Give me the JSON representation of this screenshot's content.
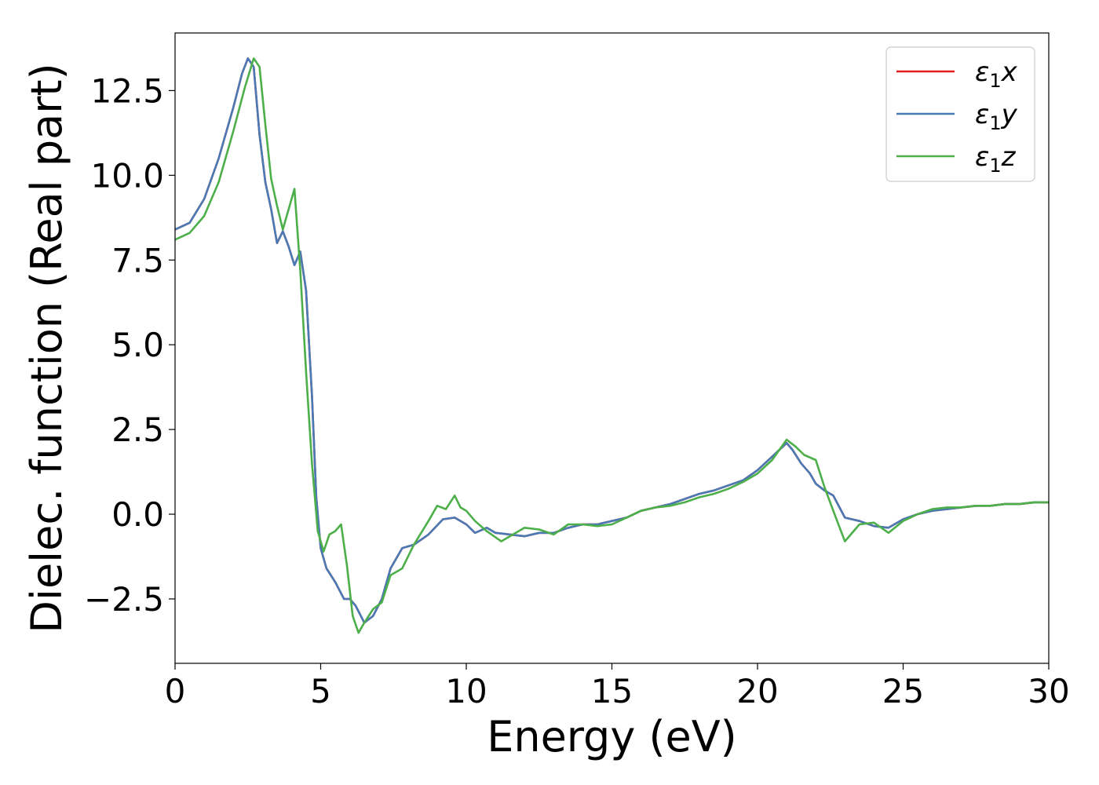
{
  "chart_data": {
    "type": "line",
    "xlabel": "Energy (eV)",
    "ylabel": "Dielec. function (Real part)",
    "xlim": [
      0,
      30
    ],
    "ylim": [
      -4.4,
      14.2
    ],
    "xticks": [
      0,
      5,
      10,
      15,
      20,
      25,
      30
    ],
    "xtick_labels": [
      "0",
      "5",
      "10",
      "15",
      "20",
      "25",
      "30"
    ],
    "yticks": [
      -2.5,
      0.0,
      2.5,
      5.0,
      7.5,
      10.0,
      12.5
    ],
    "ytick_labels": [
      "−2.5",
      "0.0",
      "2.5",
      "5.0",
      "7.5",
      "10.0",
      "12.5"
    ],
    "grid": false,
    "legend_position": "top-right",
    "series": [
      {
        "name": "x",
        "legend_sym": "ε",
        "legend_sub": "1",
        "legend_var": "x",
        "color": "#e41a1c",
        "x": [
          0,
          0.5,
          1,
          1.5,
          2,
          2.3,
          2.5,
          2.7,
          2.9,
          3.1,
          3.3,
          3.5,
          3.7,
          3.9,
          4.1,
          4.3,
          4.5,
          4.7,
          4.85,
          5,
          5.2,
          5.5,
          5.8,
          6,
          6.2,
          6.5,
          6.8,
          7.1,
          7.4,
          7.8,
          8.2,
          8.7,
          9.2,
          9.6,
          10,
          10.3,
          10.7,
          11,
          11.5,
          12,
          12.5,
          13,
          13.5,
          14,
          14.5,
          15,
          15.5,
          16,
          16.5,
          17,
          17.5,
          18,
          18.5,
          19,
          19.5,
          20,
          20.5,
          21,
          21.2,
          21.5,
          21.8,
          22,
          22.3,
          22.6,
          23,
          23.5,
          24,
          24.5,
          25,
          25.5,
          26,
          26.5,
          27,
          27.5,
          28,
          28.5,
          29,
          29.5,
          30
        ],
        "y": [
          8.4,
          8.6,
          9.3,
          10.5,
          12.0,
          13.0,
          13.45,
          13.2,
          11.2,
          9.8,
          9.0,
          8.0,
          8.35,
          7.9,
          7.35,
          7.75,
          6.6,
          3.5,
          0.5,
          -1.0,
          -1.6,
          -2.0,
          -2.5,
          -2.5,
          -2.7,
          -3.2,
          -3.0,
          -2.5,
          -1.6,
          -1.0,
          -0.9,
          -0.6,
          -0.15,
          -0.1,
          -0.3,
          -0.55,
          -0.4,
          -0.55,
          -0.6,
          -0.65,
          -0.55,
          -0.55,
          -0.4,
          -0.3,
          -0.3,
          -0.2,
          -0.1,
          0.1,
          0.2,
          0.3,
          0.45,
          0.6,
          0.7,
          0.85,
          1.0,
          1.3,
          1.7,
          2.1,
          1.9,
          1.5,
          1.2,
          0.9,
          0.7,
          0.55,
          -0.1,
          -0.2,
          -0.35,
          -0.4,
          -0.15,
          0.0,
          0.1,
          0.15,
          0.2,
          0.25,
          0.25,
          0.3,
          0.3,
          0.35,
          0.35
        ]
      },
      {
        "name": "y",
        "legend_sym": "ε",
        "legend_sub": "1",
        "legend_var": "y",
        "color": "#4a7ab5",
        "x": [
          0,
          0.5,
          1,
          1.5,
          2,
          2.3,
          2.5,
          2.7,
          2.9,
          3.1,
          3.3,
          3.5,
          3.7,
          3.9,
          4.1,
          4.3,
          4.5,
          4.7,
          4.85,
          5,
          5.2,
          5.5,
          5.8,
          6,
          6.2,
          6.5,
          6.8,
          7.1,
          7.4,
          7.8,
          8.2,
          8.7,
          9.2,
          9.6,
          10,
          10.3,
          10.7,
          11,
          11.5,
          12,
          12.5,
          13,
          13.5,
          14,
          14.5,
          15,
          15.5,
          16,
          16.5,
          17,
          17.5,
          18,
          18.5,
          19,
          19.5,
          20,
          20.5,
          21,
          21.2,
          21.5,
          21.8,
          22,
          22.3,
          22.6,
          23,
          23.5,
          24,
          24.5,
          25,
          25.5,
          26,
          26.5,
          27,
          27.5,
          28,
          28.5,
          29,
          29.5,
          30
        ],
        "y": [
          8.4,
          8.6,
          9.3,
          10.5,
          12.0,
          13.0,
          13.45,
          13.2,
          11.2,
          9.8,
          9.0,
          8.0,
          8.35,
          7.9,
          7.35,
          7.75,
          6.6,
          3.5,
          0.5,
          -1.0,
          -1.6,
          -2.0,
          -2.5,
          -2.5,
          -2.7,
          -3.2,
          -3.0,
          -2.5,
          -1.6,
          -1.0,
          -0.9,
          -0.6,
          -0.15,
          -0.1,
          -0.3,
          -0.55,
          -0.4,
          -0.55,
          -0.6,
          -0.65,
          -0.55,
          -0.55,
          -0.4,
          -0.3,
          -0.3,
          -0.2,
          -0.1,
          0.1,
          0.2,
          0.3,
          0.45,
          0.6,
          0.7,
          0.85,
          1.0,
          1.3,
          1.7,
          2.1,
          1.9,
          1.5,
          1.2,
          0.9,
          0.7,
          0.55,
          -0.1,
          -0.2,
          -0.35,
          -0.4,
          -0.15,
          0.0,
          0.1,
          0.15,
          0.2,
          0.25,
          0.25,
          0.3,
          0.3,
          0.35,
          0.35
        ]
      },
      {
        "name": "z",
        "legend_sym": "ε",
        "legend_sub": "1",
        "legend_var": "z",
        "color": "#4daf4a",
        "x": [
          0,
          0.5,
          1,
          1.5,
          2,
          2.4,
          2.7,
          2.9,
          3.1,
          3.3,
          3.5,
          3.7,
          3.9,
          4.1,
          4.3,
          4.5,
          4.7,
          4.9,
          5.1,
          5.3,
          5.5,
          5.7,
          5.9,
          6.1,
          6.3,
          6.5,
          6.8,
          7.1,
          7.4,
          7.8,
          8.2,
          8.7,
          9.0,
          9.3,
          9.6,
          9.8,
          10,
          10.3,
          10.7,
          11.2,
          11.6,
          12,
          12.5,
          13,
          13.5,
          14,
          14.5,
          15,
          15.5,
          16,
          16.5,
          17,
          17.5,
          18,
          18.5,
          19,
          19.5,
          20,
          20.5,
          21,
          21.3,
          21.6,
          22,
          22.3,
          22.6,
          23,
          23.5,
          24,
          24.5,
          25,
          25.5,
          26,
          26.5,
          27,
          27.5,
          28,
          28.5,
          29,
          29.5,
          30
        ],
        "y": [
          8.1,
          8.3,
          8.8,
          9.8,
          11.3,
          12.6,
          13.45,
          13.2,
          11.5,
          9.9,
          9.1,
          8.4,
          9.0,
          9.6,
          7.2,
          4.2,
          1.5,
          -0.5,
          -1.1,
          -0.6,
          -0.5,
          -0.3,
          -1.5,
          -3.0,
          -3.5,
          -3.2,
          -2.8,
          -2.6,
          -1.8,
          -1.6,
          -0.9,
          -0.2,
          0.25,
          0.15,
          0.55,
          0.2,
          0.1,
          -0.2,
          -0.5,
          -0.8,
          -0.6,
          -0.4,
          -0.45,
          -0.6,
          -0.3,
          -0.3,
          -0.35,
          -0.3,
          -0.1,
          0.1,
          0.2,
          0.25,
          0.35,
          0.5,
          0.6,
          0.75,
          0.95,
          1.2,
          1.6,
          2.2,
          2.0,
          1.75,
          1.6,
          0.8,
          0.1,
          -0.8,
          -0.3,
          -0.25,
          -0.55,
          -0.2,
          0.0,
          0.15,
          0.2,
          0.2,
          0.25,
          0.25,
          0.3,
          0.3,
          0.35,
          0.35
        ]
      }
    ]
  }
}
